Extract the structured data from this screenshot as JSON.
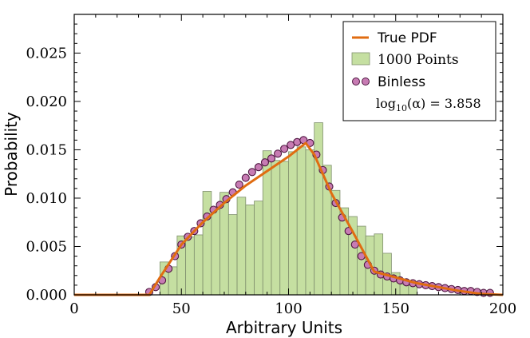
{
  "colors": {
    "hist_fill": "#c5dfa1",
    "hist_edge": "#7f8f6d",
    "pdf_line": "#e06c11",
    "binless_face": "#c77bb3",
    "binless_edge": "#4e1640"
  },
  "chart_data": {
    "type": "bar",
    "xlabel": "Arbitrary Units",
    "ylabel": "Probability",
    "xlim": [
      0,
      200
    ],
    "ylim": [
      0,
      0.029
    ],
    "x_ticks": [
      "0",
      "50",
      "100",
      "150",
      "200"
    ],
    "y_ticks": [
      "0.000",
      "0.005",
      "0.010",
      "0.015",
      "0.020",
      "0.025"
    ],
    "legend": {
      "position": "top-right",
      "pdf_label": "True PDF",
      "hist_label": "1000 Points",
      "binless_label": "Binless",
      "alpha_prefix": "log",
      "alpha_sub": "10",
      "alpha_rest": "(α) = 3.858"
    },
    "histogram": {
      "name": "1000 Points",
      "bin_width": 4,
      "bin_starts": [
        40,
        44,
        48,
        52,
        56,
        60,
        64,
        68,
        72,
        76,
        80,
        84,
        88,
        92,
        96,
        100,
        104,
        108,
        112,
        116,
        120,
        124,
        128,
        132,
        136,
        140,
        144,
        148,
        152,
        156
      ],
      "values": [
        0.0034,
        0.0029,
        0.0061,
        0.006,
        0.0062,
        0.0107,
        0.0088,
        0.0106,
        0.0083,
        0.0101,
        0.0093,
        0.0097,
        0.0149,
        0.0139,
        0.0138,
        0.0148,
        0.0153,
        0.015,
        0.0178,
        0.0134,
        0.0108,
        0.009,
        0.0081,
        0.0071,
        0.0061,
        0.0063,
        0.0043,
        0.0023,
        0.0011,
        0.0012
      ]
    },
    "true_pdf": {
      "name": "True PDF",
      "x": [
        0,
        35,
        40,
        50,
        60,
        70,
        80,
        90,
        100,
        108,
        112,
        120,
        130,
        140,
        150,
        160,
        170,
        180,
        190,
        200
      ],
      "y": [
        0,
        0,
        0.0018,
        0.0052,
        0.0075,
        0.0095,
        0.0113,
        0.0128,
        0.0143,
        0.0157,
        0.0145,
        0.0105,
        0.0065,
        0.0024,
        0.0018,
        0.0012,
        0.0008,
        0.0004,
        0.0001,
        0
      ]
    },
    "binless": {
      "name": "Binless",
      "x": [
        35,
        38,
        41,
        44,
        47,
        50,
        53,
        56,
        59,
        62,
        65,
        68,
        71,
        74,
        77,
        80,
        83,
        86,
        89,
        92,
        95,
        98,
        101,
        104,
        107,
        110,
        113,
        116,
        119,
        122,
        125,
        128,
        131,
        134,
        137,
        140,
        143,
        146,
        149,
        152,
        155,
        158,
        161,
        164,
        167,
        170,
        173,
        176,
        179,
        182,
        185,
        188,
        191,
        194
      ],
      "y": [
        0.0003,
        0.0008,
        0.0015,
        0.0027,
        0.004,
        0.0052,
        0.006,
        0.0066,
        0.0074,
        0.0081,
        0.0088,
        0.0093,
        0.0099,
        0.0106,
        0.0114,
        0.0121,
        0.0127,
        0.0132,
        0.0137,
        0.0141,
        0.0146,
        0.0151,
        0.0155,
        0.0158,
        0.016,
        0.0157,
        0.0145,
        0.0129,
        0.0112,
        0.0095,
        0.008,
        0.0066,
        0.0052,
        0.004,
        0.0031,
        0.0025,
        0.0021,
        0.0019,
        0.0017,
        0.0015,
        0.0013,
        0.0012,
        0.0011,
        0.001,
        0.0009,
        0.0008,
        0.0007,
        0.0006,
        0.0005,
        0.0004,
        0.0004,
        0.0003,
        0.0002,
        0.0002
      ]
    }
  }
}
